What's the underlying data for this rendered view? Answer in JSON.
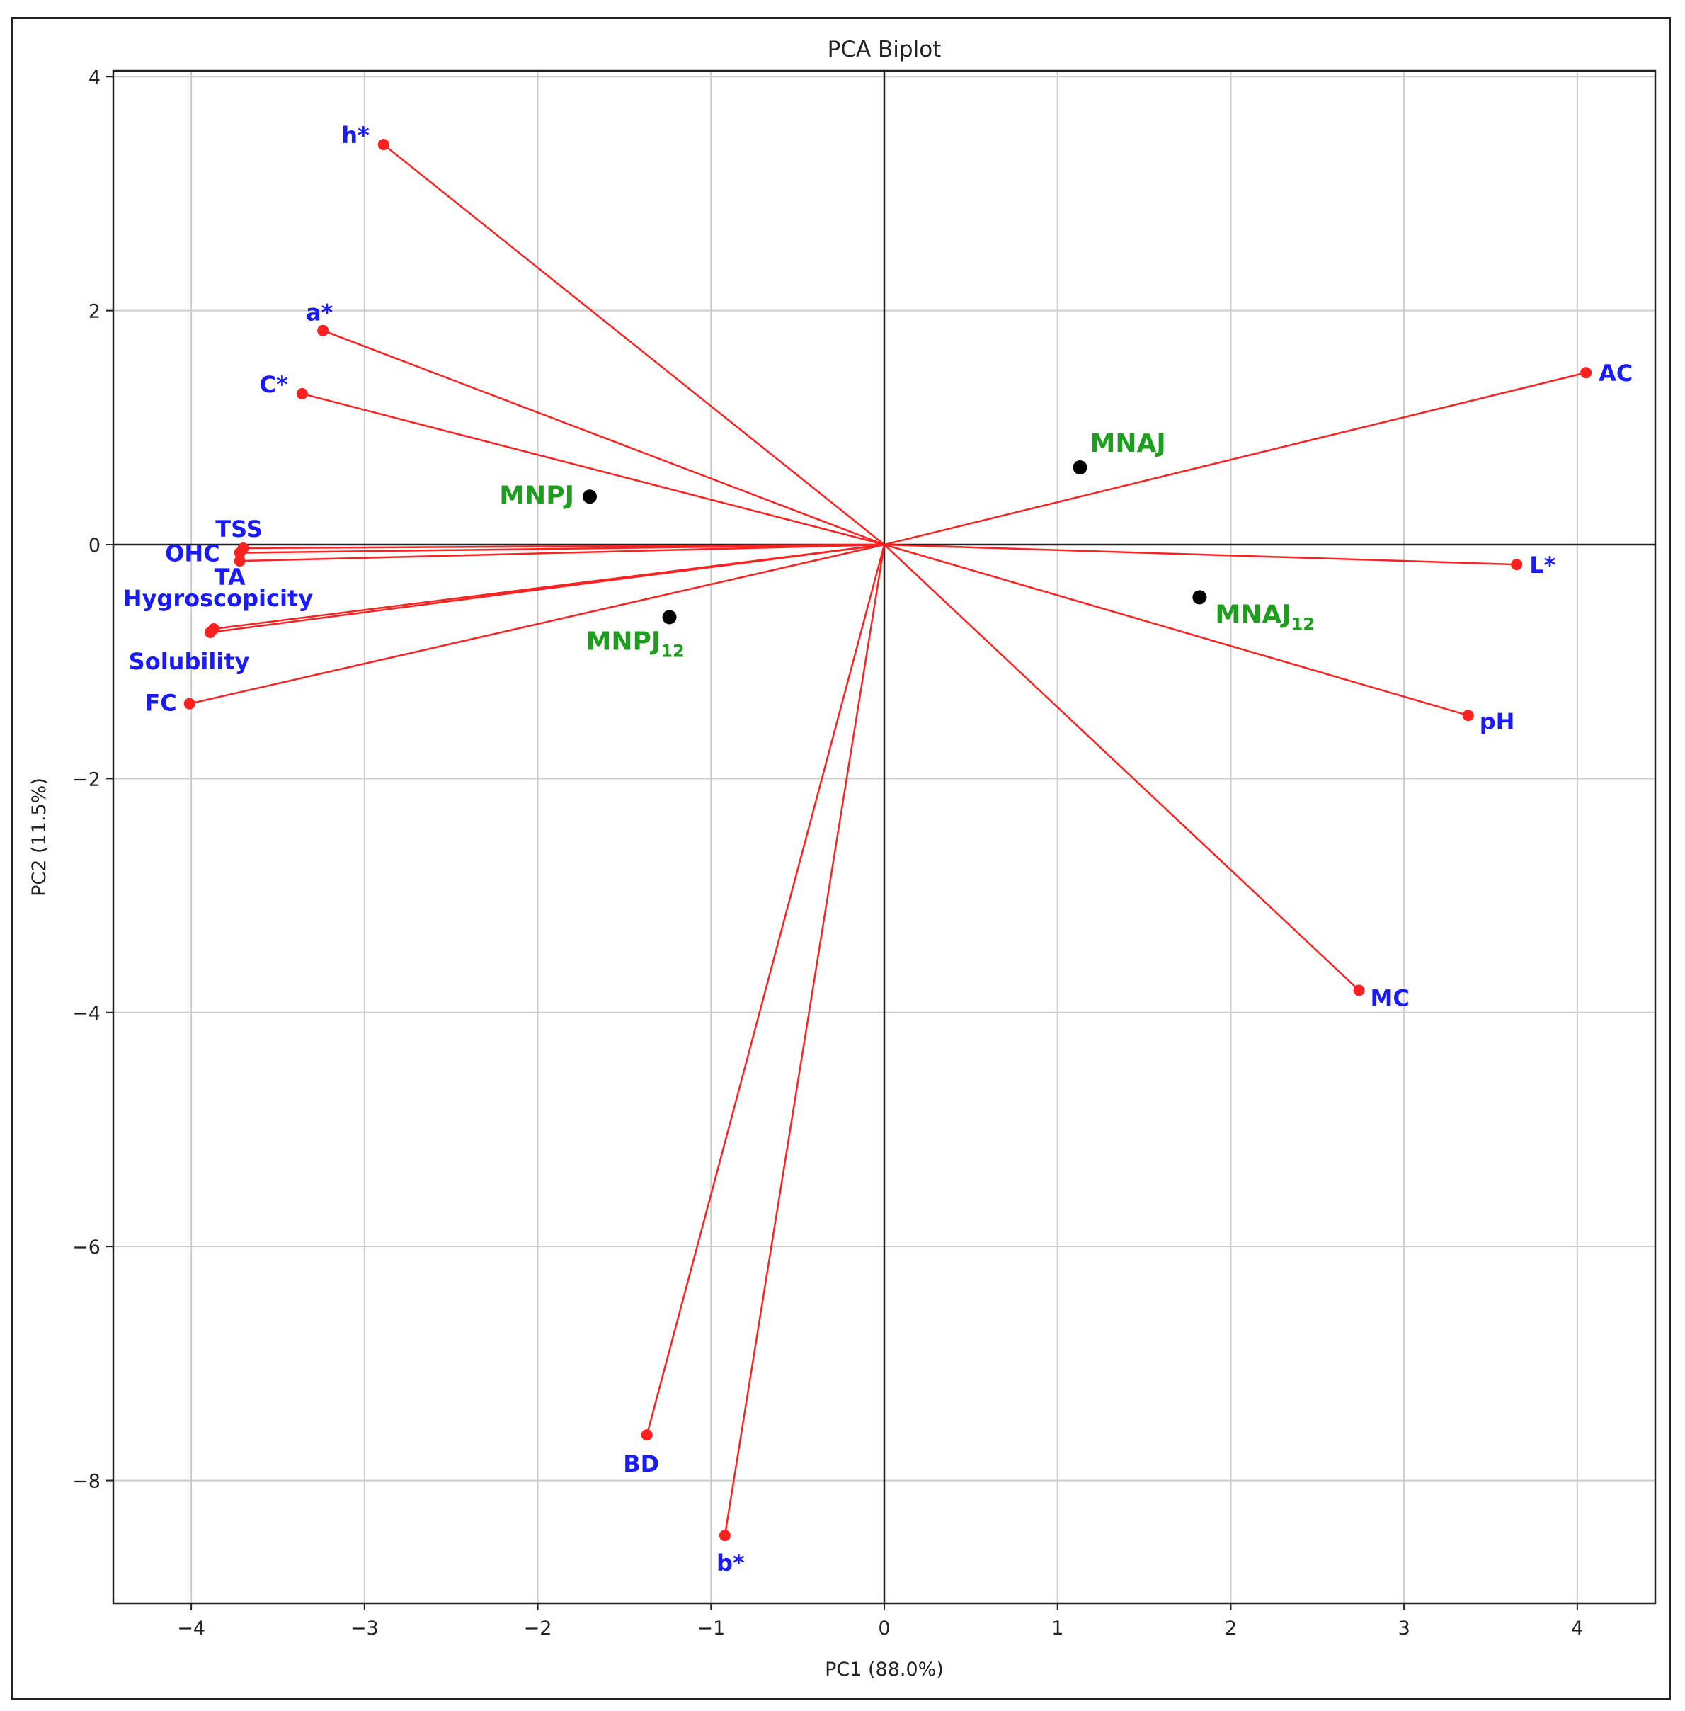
{
  "chart_data": {
    "type": "scatter",
    "subtype": "pca-biplot",
    "title": "PCA Biplot",
    "xlabel": "PC1 (88.0%)",
    "ylabel": "PC2 (11.5%)",
    "xlim": [
      -4.45,
      4.45
    ],
    "ylim": [
      -9.05,
      4.05
    ],
    "xticks": [
      -4,
      -3,
      -2,
      -1,
      0,
      1,
      2,
      3,
      4
    ],
    "yticks": [
      -8,
      -6,
      -4,
      -2,
      0,
      2,
      4
    ],
    "xtick_labels": [
      "−4",
      "−3",
      "−2",
      "−1",
      "0",
      "1",
      "2",
      "3",
      "4"
    ],
    "ytick_labels": [
      "−8",
      "−6",
      "−4",
      "−2",
      "0",
      "2",
      "4"
    ],
    "grid": true,
    "colors": {
      "loading": "#ff2020",
      "loading_label": "#1a1aff",
      "sample": "#000000",
      "sample_label": "#1d9e1d",
      "axes": "#222222",
      "grid": "#cccccc"
    },
    "loadings": [
      {
        "name": "h*",
        "x": -2.89,
        "y": 3.42
      },
      {
        "name": "a*",
        "x": -3.24,
        "y": 1.83
      },
      {
        "name": "C*",
        "x": -3.36,
        "y": 1.29
      },
      {
        "name": "TSS",
        "x": -3.7,
        "y": -0.03
      },
      {
        "name": "OHC",
        "x": -3.72,
        "y": -0.07
      },
      {
        "name": "TA",
        "x": -3.72,
        "y": -0.14
      },
      {
        "name": "Hygroscopicity",
        "x": -3.87,
        "y": -0.72
      },
      {
        "name": "Solubility",
        "x": -3.89,
        "y": -0.75
      },
      {
        "name": "FC",
        "x": -4.01,
        "y": -1.36
      },
      {
        "name": "BD",
        "x": -1.37,
        "y": -7.61
      },
      {
        "name": "b*",
        "x": -0.92,
        "y": -8.47
      },
      {
        "name": "AC",
        "x": 4.05,
        "y": 1.47
      },
      {
        "name": "L*",
        "x": 3.65,
        "y": -0.17
      },
      {
        "name": "pH",
        "x": 3.37,
        "y": -1.46
      },
      {
        "name": "MC",
        "x": 2.74,
        "y": -3.81
      }
    ],
    "samples": [
      {
        "name": "MNAJ",
        "sub": "",
        "x": 1.13,
        "y": 0.66
      },
      {
        "name": "MNPJ",
        "sub": "",
        "x": -1.7,
        "y": 0.41
      },
      {
        "name": "MNPJ",
        "sub": "12",
        "x": -1.24,
        "y": -0.62
      },
      {
        "name": "MNAJ",
        "sub": "12",
        "x": 1.82,
        "y": -0.45
      }
    ]
  }
}
